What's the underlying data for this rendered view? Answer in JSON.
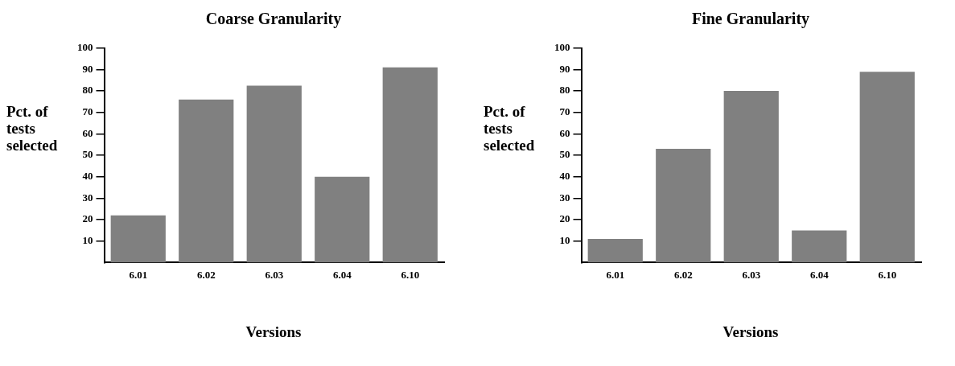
{
  "chart_data": [
    {
      "type": "bar",
      "title": "Coarse Granularity",
      "xlabel": "Versions",
      "ylabel": "Pct. of tests selected",
      "categories": [
        "6.01",
        "6.02",
        "6.03",
        "6.04",
        "6.10"
      ],
      "values": [
        22,
        76,
        82.5,
        40,
        91
      ],
      "color": "#808080",
      "ylim": [
        0,
        100
      ],
      "yticks": [
        10,
        20,
        30,
        40,
        50,
        60,
        70,
        80,
        90,
        100
      ],
      "grid": false,
      "legend": false
    },
    {
      "type": "bar",
      "title": "Fine Granularity",
      "xlabel": "Versions",
      "ylabel": "Pct. of tests selected",
      "categories": [
        "6.01",
        "6.02",
        "6.03",
        "6.04",
        "6.10"
      ],
      "values": [
        11,
        53,
        80,
        15,
        89
      ],
      "color": "#808080",
      "ylim": [
        0,
        100
      ],
      "yticks": [
        10,
        20,
        30,
        40,
        50,
        60,
        70,
        80,
        90,
        100
      ],
      "grid": false,
      "legend": false
    }
  ]
}
